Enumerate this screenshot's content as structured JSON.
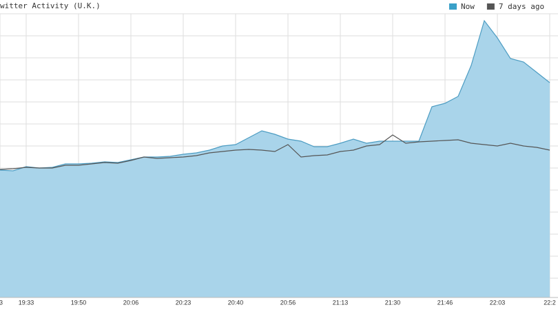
{
  "chart_data": {
    "type": "area",
    "title": "witter Activity (U.K.)",
    "categories": [
      "3",
      null,
      "19:33",
      null,
      null,
      null,
      "19:50",
      null,
      null,
      null,
      "20:06",
      null,
      null,
      null,
      "20:23",
      null,
      null,
      null,
      "20:40",
      null,
      null,
      null,
      "20:56",
      null,
      null,
      null,
      "21:13",
      null,
      null,
      null,
      "21:30",
      null,
      null,
      null,
      "21:46",
      null,
      null,
      null,
      "22:03",
      null,
      null,
      null,
      "22:2"
    ],
    "ylim": [
      0,
      412
    ],
    "legend": "top-right",
    "series": [
      {
        "name": "Now",
        "color": "#3aa0c8",
        "fill": "#a9d4ea",
        "stroke": "#4c9cc2",
        "values": [
          185,
          184,
          190,
          188,
          189,
          194,
          194,
          195,
          197,
          196,
          200,
          204,
          204,
          205,
          208,
          210,
          214,
          220,
          222,
          232,
          242,
          237,
          230,
          227,
          219,
          219,
          224,
          230,
          224,
          227,
          227,
          227,
          227,
          277,
          282,
          292,
          337,
          402,
          377,
          347,
          342,
          327,
          312
        ]
      },
      {
        "name": "7 days ago",
        "color": "#555555",
        "values": [
          186,
          187,
          189,
          188,
          188,
          192,
          192,
          194,
          196,
          195,
          199,
          204,
          202,
          203,
          204,
          206,
          210,
          212,
          214,
          215,
          214,
          212,
          222,
          204,
          206,
          207,
          212,
          214,
          220,
          222,
          236,
          224,
          226,
          227,
          228,
          229,
          224,
          222,
          220,
          224,
          220,
          218,
          214
        ]
      }
    ]
  }
}
